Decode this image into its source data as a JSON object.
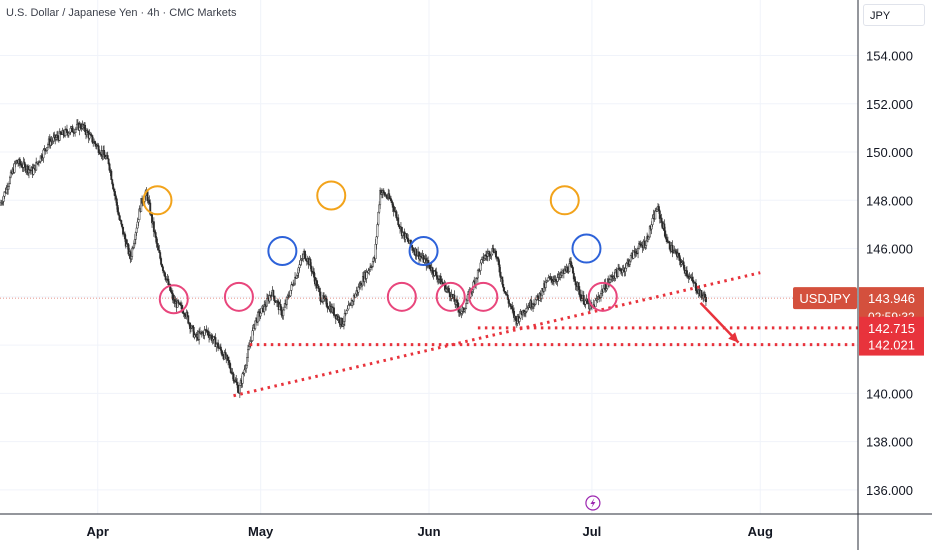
{
  "header": {
    "title": "U.S. Dollar / Japanese Yen · 4h · CMC Markets",
    "currency": "JPY"
  },
  "colors": {
    "candle": "#2b2b2b",
    "grid": "#f0f3fa",
    "trendline": "#e8333c",
    "orange_circle": "#f2a31b",
    "blue_circle": "#2d62d9",
    "pink_circle": "#e8467c",
    "price_tag": "#d4503d",
    "level_tag": "#e8333c",
    "event_icon": "#9c27b0"
  },
  "chart_data": {
    "type": "candlestick",
    "symbol_label": "USDJPY",
    "yaxis": {
      "ticks": [
        "136.000",
        "138.000",
        "140.000",
        "142.000",
        "144.000",
        "146.000",
        "148.000",
        "150.000",
        "152.000",
        "154.000"
      ],
      "tick_values": [
        136,
        138,
        140,
        142,
        144,
        146,
        148,
        150,
        152,
        154
      ],
      "ylim": [
        135,
        156.3
      ]
    },
    "xaxis": {
      "ticks": [
        "Apr",
        "May",
        "Jun",
        "Jul",
        "Aug"
      ],
      "tick_dates": [
        "2024-04-01",
        "2024-05-01",
        "2024-06-01",
        "2024-07-01",
        "2024-08-01"
      ],
      "xlim": [
        "2024-03-14",
        "2024-08-19"
      ]
    },
    "grid": true,
    "price_path": [
      [
        "2024-03-14",
        147.8
      ],
      [
        "2024-03-17",
        149.6
      ],
      [
        "2024-03-20",
        149.2
      ],
      [
        "2024-03-23",
        150.4
      ],
      [
        "2024-03-26",
        150.8
      ],
      [
        "2024-03-29",
        151.1
      ],
      [
        "2024-04-01",
        150.2
      ],
      [
        "2024-04-03",
        149.6
      ],
      [
        "2024-04-05",
        147.2
      ],
      [
        "2024-04-07",
        145.6
      ],
      [
        "2024-04-09",
        147.9
      ],
      [
        "2024-04-10",
        148.3
      ],
      [
        "2024-04-12",
        146.0
      ],
      [
        "2024-04-13",
        145.2
      ],
      [
        "2024-04-15",
        143.8
      ],
      [
        "2024-04-17",
        143.4
      ],
      [
        "2024-04-19",
        142.3
      ],
      [
        "2024-04-21",
        142.6
      ],
      [
        "2024-04-23",
        142.0
      ],
      [
        "2024-04-25",
        141.3
      ],
      [
        "2024-04-27",
        140.1
      ],
      [
        "2024-04-28",
        141.0
      ],
      [
        "2024-04-30",
        143.0
      ],
      [
        "2024-05-02",
        143.7
      ],
      [
        "2024-05-03",
        144.2
      ],
      [
        "2024-05-05",
        143.3
      ],
      [
        "2024-05-07",
        144.6
      ],
      [
        "2024-05-09",
        145.8
      ],
      [
        "2024-05-10",
        145.4
      ],
      [
        "2024-05-12",
        144.0
      ],
      [
        "2024-05-14",
        143.5
      ],
      [
        "2024-05-16",
        142.9
      ],
      [
        "2024-05-18",
        143.9
      ],
      [
        "2024-05-20",
        144.8
      ],
      [
        "2024-05-22",
        145.6
      ],
      [
        "2024-05-23",
        148.4
      ],
      [
        "2024-05-25",
        148.0
      ],
      [
        "2024-05-27",
        146.7
      ],
      [
        "2024-05-29",
        146.0
      ],
      [
        "2024-06-01",
        145.3
      ],
      [
        "2024-06-03",
        144.7
      ],
      [
        "2024-06-05",
        144.1
      ],
      [
        "2024-06-07",
        143.3
      ],
      [
        "2024-06-09",
        144.4
      ],
      [
        "2024-06-11",
        145.6
      ],
      [
        "2024-06-13",
        146.0
      ],
      [
        "2024-06-15",
        144.2
      ],
      [
        "2024-06-17",
        143.0
      ],
      [
        "2024-06-19",
        143.6
      ],
      [
        "2024-06-21",
        143.9
      ],
      [
        "2024-06-23",
        144.7
      ],
      [
        "2024-06-25",
        144.8
      ],
      [
        "2024-06-27",
        145.3
      ],
      [
        "2024-06-29",
        144.0
      ],
      [
        "2024-07-01",
        143.5
      ],
      [
        "2024-07-03",
        144.3
      ],
      [
        "2024-07-05",
        144.9
      ],
      [
        "2024-07-07",
        145.2
      ],
      [
        "2024-07-09",
        145.9
      ],
      [
        "2024-07-11",
        146.3
      ],
      [
        "2024-07-13",
        147.7
      ],
      [
        "2024-07-14",
        147.0
      ],
      [
        "2024-07-15",
        146.2
      ],
      [
        "2024-07-17",
        145.6
      ],
      [
        "2024-07-19",
        144.8
      ],
      [
        "2024-07-21",
        144.1
      ],
      [
        "2024-07-22",
        143.95
      ]
    ],
    "current_price": {
      "label": "143.946",
      "value": 143.946,
      "countdown": "02:59:32"
    },
    "levels": [
      {
        "label": "142.715",
        "value": 142.715,
        "from": "2024-06-10"
      },
      {
        "label": "142.021",
        "value": 142.021,
        "from": "2024-04-29"
      }
    ],
    "trendline": {
      "from": [
        "2024-04-26",
        139.9
      ],
      "to": [
        "2024-08-01",
        145.0
      ]
    },
    "arrow": {
      "from": [
        "2024-07-21",
        143.75
      ],
      "to": [
        "2024-07-28",
        142.1
      ]
    },
    "circles": [
      {
        "color": "orange",
        "date": "2024-04-12",
        "value": 148.0
      },
      {
        "color": "pink",
        "date": "2024-04-15",
        "value": 143.9
      },
      {
        "color": "pink",
        "date": "2024-04-27",
        "value": 144.0
      },
      {
        "color": "blue",
        "date": "2024-05-05",
        "value": 145.9
      },
      {
        "color": "orange",
        "date": "2024-05-14",
        "value": 148.2
      },
      {
        "color": "pink",
        "date": "2024-05-27",
        "value": 144.0
      },
      {
        "color": "blue",
        "date": "2024-05-31",
        "value": 145.9
      },
      {
        "color": "pink",
        "date": "2024-06-05",
        "value": 144.0
      },
      {
        "color": "pink",
        "date": "2024-06-11",
        "value": 144.0
      },
      {
        "color": "orange",
        "date": "2024-06-26",
        "value": 148.0
      },
      {
        "color": "blue",
        "date": "2024-06-30",
        "value": 146.0
      },
      {
        "color": "pink",
        "date": "2024-07-03",
        "value": 144.0
      }
    ]
  }
}
